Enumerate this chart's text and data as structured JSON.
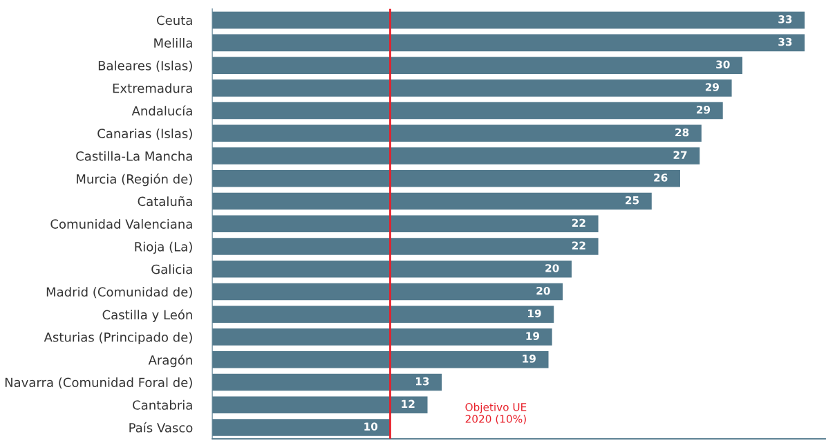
{
  "chart_data": {
    "type": "bar",
    "orientation": "horizontal",
    "categories": [
      "Ceuta",
      "Melilla",
      "Baleares (Islas)",
      "Extremadura",
      "Andalucía",
      "Canarias (Islas)",
      "Castilla-La Mancha",
      "Murcia (Región de)",
      "Cataluña",
      "Comunidad Valenciana",
      "Rioja (La)",
      "Galicia",
      "Madrid (Comunidad de)",
      "Castilla y León",
      "Asturias (Principado de)",
      "Aragón",
      "Navarra (Comunidad Foral de)",
      "Cantabria",
      "País Vasco"
    ],
    "values": [
      33.3,
      33.3,
      29.8,
      29.2,
      28.7,
      27.5,
      27.4,
      26.3,
      24.7,
      21.7,
      21.7,
      20.2,
      19.7,
      19.2,
      19.1,
      18.9,
      12.9,
      12.1,
      10.0
    ],
    "value_labels": [
      "33",
      "33",
      "30",
      "29",
      "29",
      "28",
      "27",
      "26",
      "25",
      "22",
      "22",
      "20",
      "20",
      "19",
      "19",
      "19",
      "13",
      "12",
      "10"
    ],
    "color": "#52798c",
    "xlim": [
      0,
      34.5
    ],
    "ref_lines": [
      {
        "axis": "x",
        "value": 10,
        "label": "Objetivo UE\n2020 (10%)",
        "color": "#e8202a"
      }
    ],
    "grid": false,
    "legend": false
  }
}
